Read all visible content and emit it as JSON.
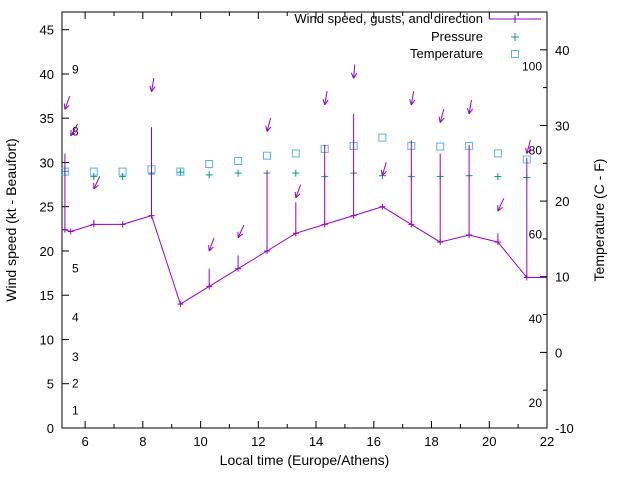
{
  "chart_data": {
    "type": "line",
    "title": "",
    "xlabel": "Local time (Europe/Athens)",
    "ylabel_left": "Wind speed (kt - Beaufort)",
    "ylabel_right": "Temperature (C - F)",
    "xlim": [
      5.2,
      22
    ],
    "ylim_left": [
      0,
      47
    ],
    "ylim_right": [
      -10,
      45
    ],
    "x_major_ticks": [
      6,
      8,
      10,
      12,
      14,
      16,
      18,
      20,
      22
    ],
    "x_minor_ticks": [
      7,
      9,
      11,
      13,
      15,
      17,
      19,
      21
    ],
    "left_ticks": [
      0,
      5,
      10,
      15,
      20,
      25,
      30,
      35,
      40,
      45
    ],
    "right_ticks": [
      -10,
      0,
      10,
      20,
      30,
      40
    ],
    "right_minor_ticks": [
      -5,
      5,
      15,
      25,
      35
    ],
    "beaufort_scale_labels": [
      {
        "label": "1",
        "kt": 2
      },
      {
        "label": "2",
        "kt": 5
      },
      {
        "label": "3",
        "kt": 8
      },
      {
        "label": "4",
        "kt": 12.5
      },
      {
        "label": "5",
        "kt": 18
      },
      {
        "label": "8",
        "kt": 33.5
      },
      {
        "label": "9",
        "kt": 40.5
      }
    ],
    "fahrenheit_scale_labels": [
      {
        "label": "20",
        "c": -6.7
      },
      {
        "label": "40",
        "c": 4.4
      },
      {
        "label": "60",
        "c": 15.6
      },
      {
        "label": "80",
        "c": 26.7
      },
      {
        "label": "100",
        "c": 37.8
      }
    ],
    "colors": {
      "wind": "#9400d3",
      "pressure": "#009e73",
      "temperature": "#56b4e9",
      "axis": "#000000",
      "background": "#ffffff"
    },
    "legend_position": "top-right-inside",
    "series": {
      "wind": {
        "name": "Wind speed, gusts, and direction",
        "x": [
          5.3,
          5.5,
          6.3,
          7.3,
          8.3,
          9.3,
          10.3,
          11.3,
          12.3,
          13.3,
          14.3,
          15.3,
          16.3,
          17.3,
          18.3,
          19.3,
          20.3,
          21.3
        ],
        "speed": [
          22.4,
          22.2,
          23,
          23,
          24,
          14,
          16,
          18,
          20,
          22,
          23,
          24,
          25,
          23,
          21,
          21.8,
          21,
          17
        ],
        "gust": [
          31,
          22.2,
          23.5,
          23,
          34,
          14,
          18,
          19.5,
          29,
          25.5,
          32,
          35.5,
          25,
          32.5,
          31,
          32,
          22,
          30.5
        ],
        "arrows": [
          {
            "t": 5.3,
            "head_kt": 36,
            "angle_deg": 200
          },
          {
            "t": 5.5,
            "head_kt": 33,
            "angle_deg": 210
          },
          {
            "t": 6.3,
            "head_kt": 27,
            "angle_deg": 205
          },
          {
            "t": 8.3,
            "head_kt": 38,
            "angle_deg": 190
          },
          {
            "t": 10.3,
            "head_kt": 20,
            "angle_deg": 200
          },
          {
            "t": 11.3,
            "head_kt": 21.5,
            "angle_deg": 205
          },
          {
            "t": 12.3,
            "head_kt": 33.5,
            "angle_deg": 195
          },
          {
            "t": 13.3,
            "head_kt": 26,
            "angle_deg": 200
          },
          {
            "t": 14.3,
            "head_kt": 36.5,
            "angle_deg": 190
          },
          {
            "t": 15.3,
            "head_kt": 39.5,
            "angle_deg": 185
          },
          {
            "t": 16.3,
            "head_kt": 28.5,
            "angle_deg": 195
          },
          {
            "t": 17.3,
            "head_kt": 36.5,
            "angle_deg": 190
          },
          {
            "t": 18.3,
            "head_kt": 34.5,
            "angle_deg": 195
          },
          {
            "t": 19.3,
            "head_kt": 35.5,
            "angle_deg": 190
          },
          {
            "t": 20.3,
            "head_kt": 24.5,
            "angle_deg": 205
          },
          {
            "t": 21.3,
            "head_kt": 31,
            "angle_deg": 195
          }
        ]
      },
      "pressure": {
        "name": "Pressure",
        "x": [
          5.3,
          6.3,
          7.3,
          8.3,
          9.3,
          10.3,
          11.3,
          12.3,
          13.3,
          14.3,
          15.3,
          16.3,
          17.3,
          18.3,
          19.3,
          20.3,
          21.3
        ],
        "y_left_axis": [
          29.0,
          28.4,
          28.4,
          28.7,
          28.9,
          28.6,
          28.8,
          28.8,
          28.8,
          28.4,
          28.8,
          28.5,
          28.4,
          28.4,
          28.5,
          28.4,
          28.3
        ]
      },
      "temperature": {
        "name": "Temperature",
        "x": [
          5.3,
          6.3,
          7.3,
          8.3,
          9.3,
          10.3,
          11.3,
          12.3,
          13.3,
          14.3,
          15.3,
          16.3,
          17.3,
          18.3,
          19.3,
          20.3,
          21.3
        ],
        "y_celsius": [
          23.9,
          23.9,
          23.9,
          24.2,
          23.9,
          24.9,
          25.3,
          26.0,
          26.3,
          26.9,
          27.3,
          28.4,
          27.3,
          27.2,
          27.3,
          26.3,
          25.5
        ]
      }
    }
  }
}
